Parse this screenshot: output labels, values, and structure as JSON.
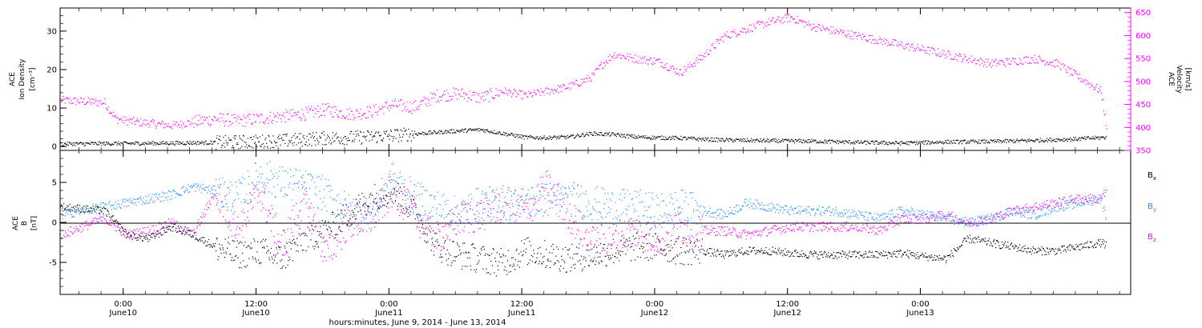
{
  "chart_data": [
    {
      "type": "scatter",
      "panel": "top",
      "ylabel_left": [
        "ACE",
        "Ion Density",
        "[cm⁻³]"
      ],
      "ylabel_right": [
        "ACE",
        "Velocity",
        "[km/s]"
      ],
      "ylim_left": [
        -1,
        36
      ],
      "ylim_right": [
        350,
        660
      ],
      "yticks_left": [
        0,
        10,
        20,
        30
      ],
      "yticks_right": [
        350,
        400,
        450,
        500,
        550,
        600,
        650
      ],
      "colors": {
        "density": "#000000",
        "velocity": "#ff00ff"
      },
      "series": [
        {
          "name": "",
          "axis": "left",
          "t_hours": [
            0,
            5,
            10,
            15,
            20,
            24,
            27,
            30,
            33,
            36,
            38,
            40,
            42,
            44,
            46,
            48,
            50,
            52,
            54,
            56,
            58,
            60,
            64,
            68,
            72,
            76,
            80,
            84,
            88,
            92,
            94.5
          ],
          "values": [
            0.8,
            0.9,
            1.0,
            1.2,
            1.6,
            2.3,
            2.5,
            3.0,
            3.6,
            4.2,
            4.5,
            3.5,
            2.5,
            2.4,
            2.6,
            3.5,
            3.2,
            2.6,
            2.4,
            2.3,
            2.0,
            1.8,
            1.6,
            1.5,
            1.2,
            1.0,
            1.3,
            1.4,
            1.7,
            2.1,
            2.5
          ]
        },
        {
          "name": "",
          "axis": "right",
          "t_hours": [
            0,
            4,
            5,
            6,
            10,
            14,
            16,
            18,
            20,
            22,
            24,
            26,
            28,
            30,
            32,
            34,
            36,
            38,
            40,
            42,
            44,
            46,
            48,
            49,
            50,
            52,
            54,
            56,
            58,
            60,
            62,
            64,
            66,
            68,
            70,
            72,
            74,
            76,
            78,
            80,
            82,
            84,
            86,
            88,
            90,
            92,
            94,
            94.5
          ],
          "values": [
            460,
            455,
            420,
            415,
            405,
            420,
            415,
            420,
            425,
            430,
            440,
            430,
            435,
            450,
            445,
            470,
            475,
            465,
            480,
            470,
            480,
            490,
            510,
            540,
            560,
            550,
            545,
            520,
            555,
            600,
            615,
            630,
            640,
            620,
            610,
            600,
            590,
            580,
            570,
            560,
            550,
            540,
            545,
            550,
            540,
            510,
            480,
            400
          ]
        }
      ]
    },
    {
      "type": "scatter",
      "panel": "bottom",
      "ylabel": [
        "ACE",
        "B",
        "[nT]"
      ],
      "ylim": [
        -9,
        9
      ],
      "yticks": [
        -5,
        0,
        5
      ],
      "legend_position": "right",
      "colors": {
        "Bx": "#000000",
        "By": "#1e90ff",
        "Bz": "#ff00ff"
      },
      "series": [
        {
          "name": "Bx",
          "t_hours": [
            0,
            4,
            6,
            8,
            10,
            12,
            14,
            16,
            18,
            20,
            22,
            24,
            26,
            28,
            30,
            32,
            34,
            36,
            38,
            40,
            42,
            44,
            46,
            48,
            50,
            52,
            54,
            56,
            58,
            60,
            62,
            64,
            66,
            68,
            70,
            72,
            74,
            76,
            78,
            80,
            82,
            84,
            86,
            88,
            90,
            92,
            94,
            94.5
          ],
          "values": [
            2.0,
            1.5,
            -1.5,
            -2.0,
            -0.5,
            -1.5,
            -3.0,
            -4.0,
            -3.5,
            -4.5,
            -2.0,
            -1.0,
            1.0,
            3.0,
            4.0,
            1.5,
            -3.0,
            -4.0,
            -4.5,
            -5.0,
            -3.5,
            -4.0,
            -4.5,
            -4.0,
            -3.5,
            -3.0,
            -3.0,
            -3.5,
            -3.5,
            -4.0,
            -3.5,
            -3.5,
            -3.8,
            -4.0,
            -4.0,
            -4.0,
            -4.0,
            -3.8,
            -4.2,
            -4.5,
            -2.0,
            -2.5,
            -3.0,
            -3.5,
            -3.5,
            -3.0,
            -2.5,
            -2.8
          ]
        },
        {
          "name": "By",
          "t_hours": [
            0,
            4,
            6,
            8,
            10,
            12,
            14,
            16,
            18,
            20,
            22,
            24,
            26,
            28,
            30,
            32,
            34,
            36,
            38,
            40,
            42,
            44,
            46,
            48,
            50,
            52,
            54,
            56,
            58,
            60,
            62,
            64,
            66,
            68,
            70,
            72,
            74,
            76,
            78,
            80,
            82,
            84,
            86,
            88,
            90,
            92,
            94,
            94.5
          ],
          "values": [
            1.0,
            2.0,
            2.5,
            3.0,
            3.5,
            4.5,
            4.0,
            3.0,
            6.0,
            5.0,
            4.5,
            3.5,
            1.5,
            1.0,
            5.5,
            3.0,
            2.0,
            1.0,
            2.5,
            2.0,
            2.5,
            3.0,
            3.0,
            2.5,
            2.0,
            2.0,
            1.5,
            2.0,
            1.5,
            1.0,
            2.5,
            2.0,
            1.5,
            1.5,
            1.5,
            1.0,
            0.5,
            1.5,
            1.0,
            0.5,
            0.0,
            0.5,
            1.5,
            1.0,
            2.0,
            2.5,
            3.0,
            0.5
          ]
        },
        {
          "name": "Bz",
          "t_hours": [
            0,
            4,
            6,
            8,
            10,
            12,
            14,
            16,
            18,
            20,
            22,
            24,
            26,
            28,
            30,
            32,
            34,
            36,
            38,
            40,
            42,
            44,
            46,
            48,
            50,
            52,
            54,
            56,
            58,
            60,
            62,
            64,
            66,
            68,
            70,
            72,
            74,
            76,
            78,
            80,
            82,
            84,
            86,
            88,
            90,
            92,
            94,
            94.5
          ],
          "values": [
            -1.5,
            0.5,
            -1.5,
            -1.0,
            0.0,
            -1.5,
            4.0,
            -1.0,
            4.0,
            -3.0,
            3.0,
            -4.0,
            0.0,
            0.5,
            4.0,
            1.0,
            -2.0,
            0.5,
            1.0,
            2.5,
            1.5,
            4.5,
            1.0,
            -2.5,
            -2.0,
            -1.0,
            -2.0,
            -0.5,
            -1.0,
            -1.0,
            -1.5,
            -1.0,
            -0.5,
            -0.5,
            -0.5,
            -0.5,
            -1.0,
            0.5,
            0.5,
            1.0,
            0.0,
            0.5,
            1.5,
            2.0,
            2.5,
            3.0,
            3.0,
            4.0
          ]
        }
      ]
    }
  ],
  "time_axis": {
    "t_max_hours": 96.7,
    "ticks": [
      {
        "t_hours": 5.7,
        "time": "0:00",
        "day": "June10"
      },
      {
        "t_hours": 17.7,
        "time": "12:00",
        "day": "June10"
      },
      {
        "t_hours": 29.7,
        "time": "0:00",
        "day": "June11"
      },
      {
        "t_hours": 41.7,
        "time": "12:00",
        "day": "June11"
      },
      {
        "t_hours": 53.7,
        "time": "0:00",
        "day": "June12"
      },
      {
        "t_hours": 65.7,
        "time": "12:00",
        "day": "June12"
      },
      {
        "t_hours": 77.7,
        "time": "0:00",
        "day": "June13"
      }
    ],
    "xlabel": "hours:minutes, June  9, 2014 - June 13, 2014"
  }
}
